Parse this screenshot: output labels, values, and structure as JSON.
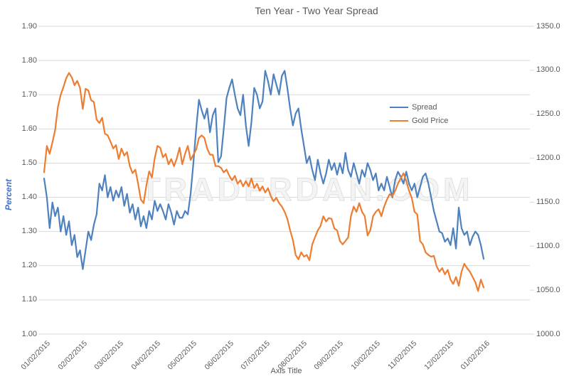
{
  "title": "Ten Year - Two Year Spread",
  "watermark": "TRADERDAN.COM",
  "colors": {
    "spread_line": "#4E81BD",
    "gold_line": "#ED7D31",
    "gridline": "#D9D9D9",
    "label_text": "#595959",
    "y_left_title": "#4472C4",
    "watermark_fill": "#F2F2F2"
  },
  "axes": {
    "y_left": {
      "title": "Percent",
      "ticks": [
        "1.90",
        "1.80",
        "1.70",
        "1.60",
        "1.50",
        "1.40",
        "1.30",
        "1.20",
        "1.10",
        "1.00"
      ]
    },
    "y_right": {
      "ticks": [
        "1350.0",
        "1300.0",
        "1250.0",
        "1200.0",
        "1150.0",
        "1100.0",
        "1050.0",
        "1000.0"
      ]
    },
    "x": {
      "title": "Axis Title",
      "ticks": [
        "01/02/2015",
        "02/02/2015",
        "03/02/2015",
        "04/02/2015",
        "05/02/2015",
        "06/02/2015",
        "07/02/2015",
        "08/02/2015",
        "09/02/2015",
        "10/02/2015",
        "11/02/2015",
        "12/02/2015",
        "01/02/2016"
      ]
    }
  },
  "legend": [
    {
      "label": "Spread",
      "color": "#4E81BD"
    },
    {
      "label": "Gold Price",
      "color": "#ED7D31"
    }
  ],
  "chart_data": {
    "type": "line",
    "title": "Ten Year - Two Year Spread",
    "xlabel": "Axis Title",
    "y_left_label": "Percent",
    "x_tick_labels": [
      "01/02/2015",
      "02/02/2015",
      "03/02/2015",
      "04/02/2015",
      "05/02/2015",
      "06/02/2015",
      "07/02/2015",
      "08/02/2015",
      "09/02/2015",
      "10/02/2015",
      "11/02/2015",
      "12/02/2015",
      "01/02/2016"
    ],
    "y_left_range": [
      1.0,
      1.9
    ],
    "y_left_step": 0.1,
    "y_right_range": [
      1000.0,
      1350.0
    ],
    "y_right_step": 50.0,
    "grid": "horizontal",
    "legend_position": "inside-upper-right",
    "x_spacing": "equal, daily data from 01/02/2015 to 01/02/2016",
    "series": [
      {
        "name": "Spread",
        "axis": "left",
        "color": "#4E81BD",
        "values": [
          1.455,
          1.4,
          1.31,
          1.385,
          1.345,
          1.37,
          1.3,
          1.345,
          1.29,
          1.33,
          1.26,
          1.29,
          1.225,
          1.245,
          1.19,
          1.245,
          1.3,
          1.275,
          1.32,
          1.35,
          1.44,
          1.42,
          1.465,
          1.4,
          1.43,
          1.39,
          1.42,
          1.4,
          1.43,
          1.375,
          1.41,
          1.355,
          1.38,
          1.335,
          1.37,
          1.315,
          1.345,
          1.31,
          1.36,
          1.335,
          1.39,
          1.36,
          1.38,
          1.36,
          1.335,
          1.38,
          1.355,
          1.32,
          1.36,
          1.34,
          1.34,
          1.36,
          1.35,
          1.41,
          1.5,
          1.6,
          1.685,
          1.655,
          1.63,
          1.66,
          1.59,
          1.64,
          1.66,
          1.503,
          1.52,
          1.6,
          1.69,
          1.72,
          1.745,
          1.7,
          1.66,
          1.64,
          1.7,
          1.61,
          1.55,
          1.62,
          1.72,
          1.7,
          1.66,
          1.68,
          1.77,
          1.74,
          1.7,
          1.76,
          1.73,
          1.7,
          1.755,
          1.77,
          1.72,
          1.66,
          1.61,
          1.645,
          1.66,
          1.6,
          1.55,
          1.5,
          1.52,
          1.48,
          1.45,
          1.51,
          1.47,
          1.44,
          1.47,
          1.51,
          1.48,
          1.5,
          1.466,
          1.5,
          1.47,
          1.53,
          1.48,
          1.46,
          1.5,
          1.47,
          1.44,
          1.48,
          1.46,
          1.5,
          1.48,
          1.45,
          1.47,
          1.42,
          1.44,
          1.42,
          1.46,
          1.43,
          1.4,
          1.45,
          1.475,
          1.46,
          1.44,
          1.475,
          1.44,
          1.42,
          1.44,
          1.4,
          1.43,
          1.46,
          1.47,
          1.44,
          1.4,
          1.36,
          1.33,
          1.3,
          1.295,
          1.27,
          1.28,
          1.26,
          1.31,
          1.25,
          1.37,
          1.31,
          1.29,
          1.3,
          1.26,
          1.285,
          1.3,
          1.29,
          1.26,
          1.22
        ]
      },
      {
        "name": "Gold Price",
        "axis": "right",
        "color": "#ED7D31",
        "values": [
          1184,
          1214,
          1205,
          1218,
          1232,
          1258,
          1272,
          1281,
          1291,
          1297,
          1292,
          1283,
          1288,
          1280,
          1256,
          1279,
          1277,
          1266,
          1264,
          1244,
          1240,
          1246,
          1228,
          1226,
          1219,
          1211,
          1215,
          1199,
          1211,
          1203,
          1207,
          1191,
          1183,
          1187,
          1171,
          1153,
          1149,
          1169,
          1185,
          1178,
          1200,
          1214,
          1212,
          1201,
          1205,
          1193,
          1199,
          1191,
          1200,
          1212,
          1193,
          1205,
          1214,
          1198,
          1204,
          1210,
          1223,
          1226,
          1223,
          1211,
          1204,
          1204,
          1191,
          1191,
          1189,
          1184,
          1187,
          1180,
          1175,
          1180,
          1171,
          1175,
          1168,
          1174,
          1168,
          1177,
          1166,
          1171,
          1163,
          1168,
          1161,
          1166,
          1157,
          1151,
          1155,
          1149,
          1145,
          1139,
          1131,
          1118,
          1107,
          1090,
          1085,
          1093,
          1088,
          1090,
          1084,
          1102,
          1110,
          1118,
          1123,
          1134,
          1128,
          1132,
          1131,
          1120,
          1118,
          1106,
          1102,
          1106,
          1110,
          1134,
          1145,
          1139,
          1149,
          1139,
          1134,
          1112,
          1118,
          1134,
          1139,
          1142,
          1134,
          1145,
          1153,
          1159,
          1157,
          1163,
          1171,
          1177,
          1183,
          1174,
          1163,
          1155,
          1139,
          1136,
          1106,
          1102,
          1093,
          1090,
          1088,
          1089,
          1077,
          1071,
          1075,
          1068,
          1073,
          1062,
          1057,
          1065,
          1055,
          1071,
          1080,
          1075,
          1071,
          1065,
          1059,
          1049,
          1062,
          1053
        ]
      }
    ]
  }
}
